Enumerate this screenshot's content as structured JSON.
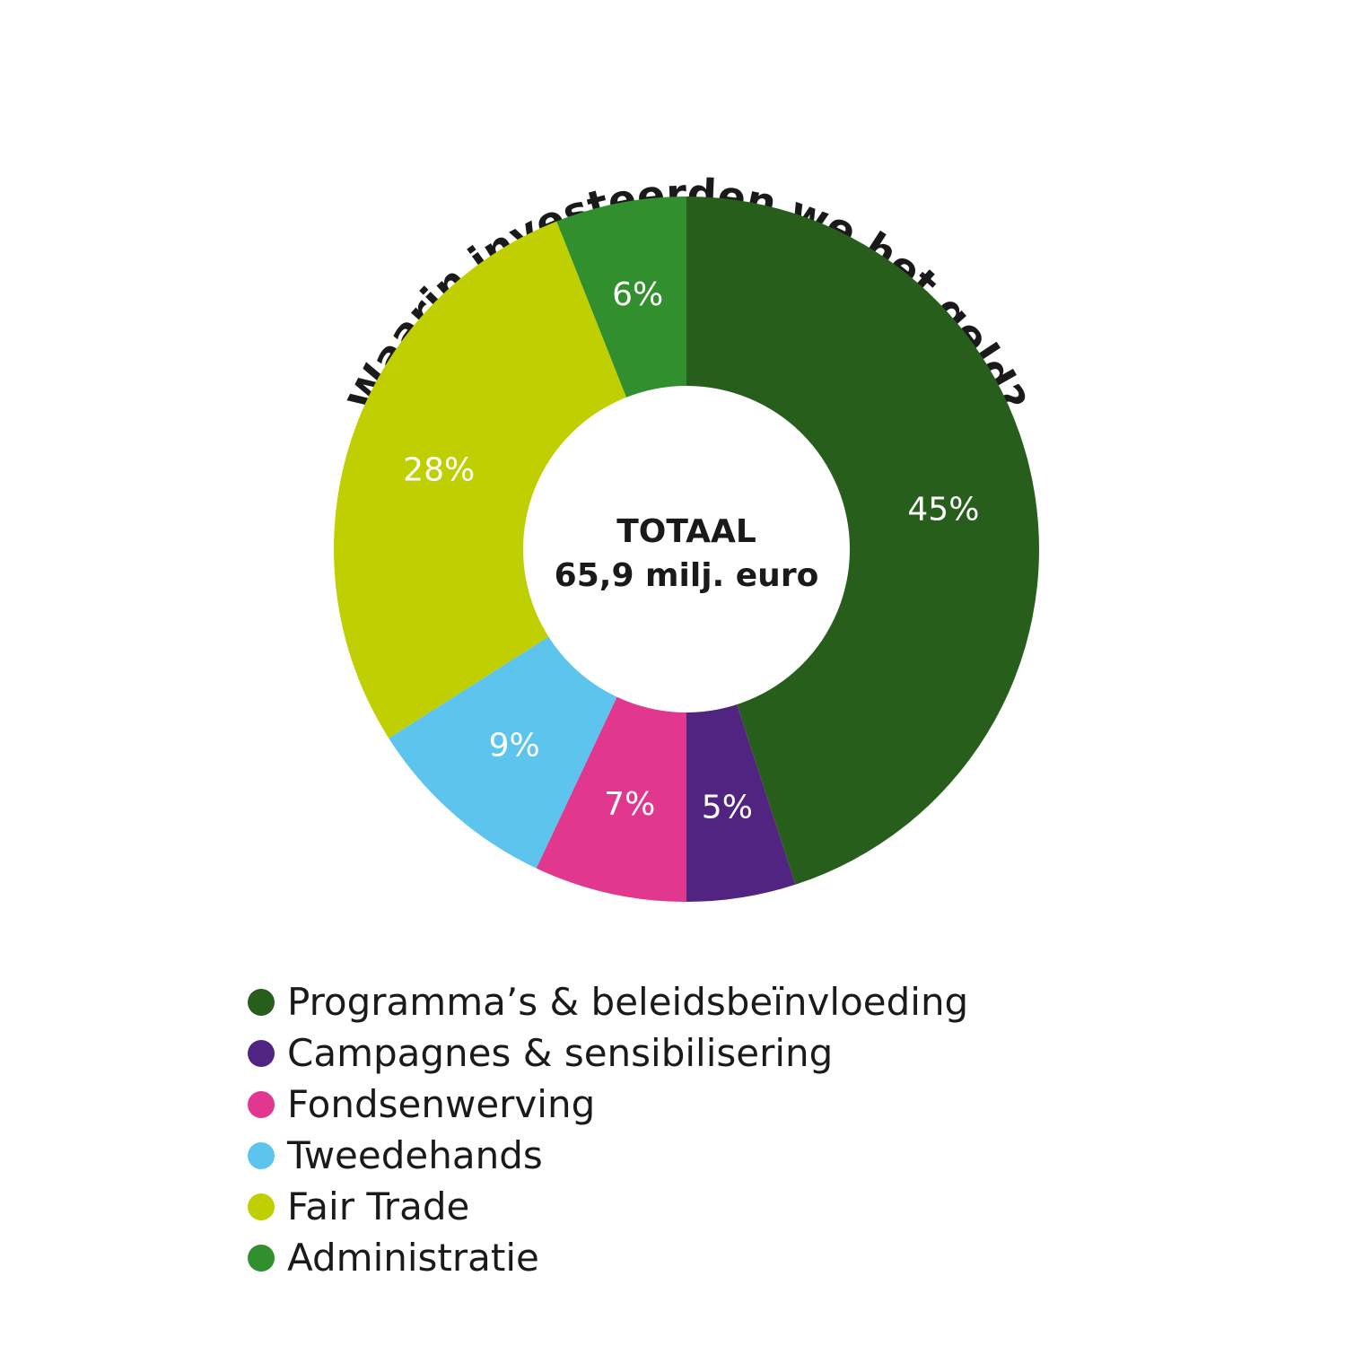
{
  "chart_data": {
    "type": "pie",
    "title": "Waarin investeerden we het geld?",
    "center": {
      "line1": "TOTAAL",
      "line2": "65,9 milj. euro"
    },
    "legend_position": "bottom-left",
    "slices": [
      {
        "name": "Programma’s & beleidsbeïnvloeding",
        "value": 45,
        "label": "45%",
        "color": "#285e1c"
      },
      {
        "name": "Campagnes & sensibilisering",
        "value": 5,
        "label": "5%",
        "color": "#522481"
      },
      {
        "name": "Fondsenwerving",
        "value": 7,
        "label": "7%",
        "color": "#e2378e"
      },
      {
        "name": "Tweedehands",
        "value": 9,
        "label": "9%",
        "color": "#5dc5ed"
      },
      {
        "name": "Fair Trade",
        "value": 28,
        "label": "28%",
        "color": "#bfcf02"
      },
      {
        "name": "Administratie",
        "value": 6,
        "label": "6%",
        "color": "#318f2d"
      }
    ]
  }
}
